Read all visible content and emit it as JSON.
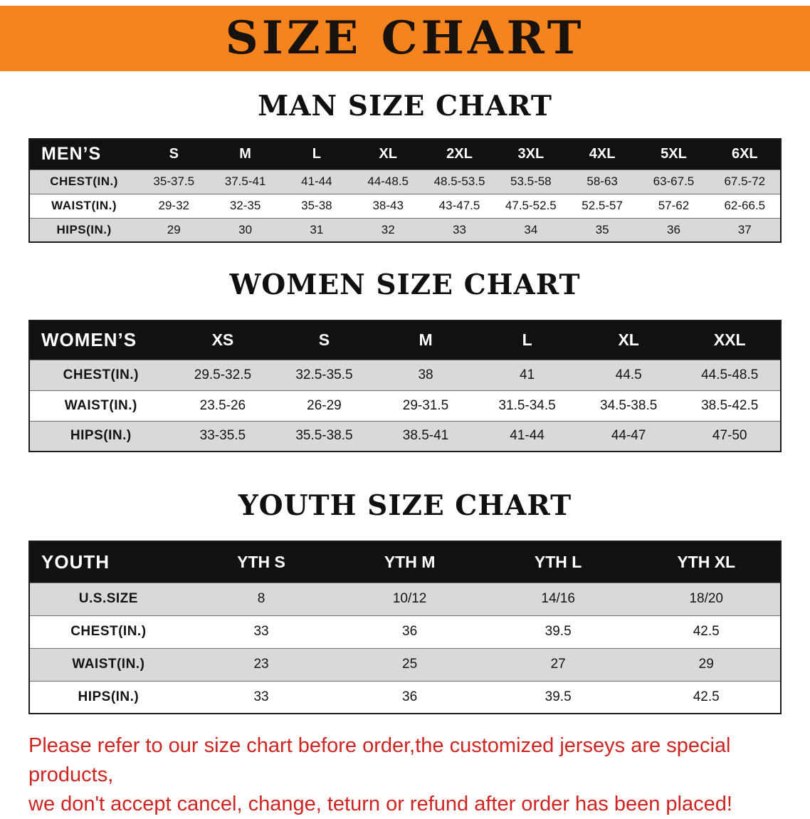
{
  "banner": {
    "title": "SIZE CHART"
  },
  "colors": {
    "banner_bg": "#F5841E",
    "header_row_bg": "#111111",
    "alt_row_bg": "#D9D9D9",
    "disclaimer_text": "#D02420"
  },
  "sections": [
    {
      "heading": "MAN SIZE CHART",
      "table": {
        "header": [
          "MEN’S",
          "S",
          "M",
          "L",
          "XL",
          "2XL",
          "3XL",
          "4XL",
          "5XL",
          "6XL"
        ],
        "rows": [
          [
            "CHEST(IN.)",
            "35-37.5",
            "37.5-41",
            "41-44",
            "44-48.5",
            "48.5-53.5",
            "53.5-58",
            "58-63",
            "63-67.5",
            "67.5-72"
          ],
          [
            "WAIST(IN.)",
            "29-32",
            "32-35",
            "35-38",
            "38-43",
            "43-47.5",
            "47.5-52.5",
            "52.5-57",
            "57-62",
            "62-66.5"
          ],
          [
            "HIPS(IN.)",
            "29",
            "30",
            "31",
            "32",
            "33",
            "34",
            "35",
            "36",
            "37"
          ]
        ]
      }
    },
    {
      "heading": "WOMEN SIZE CHART",
      "table": {
        "header": [
          "WOMEN’S",
          "XS",
          "S",
          "M",
          "L",
          "XL",
          "XXL"
        ],
        "rows": [
          [
            "CHEST(IN.)",
            "29.5-32.5",
            "32.5-35.5",
            "38",
            "41",
            "44.5",
            "44.5-48.5"
          ],
          [
            "WAIST(IN.)",
            "23.5-26",
            "26-29",
            "29-31.5",
            "31.5-34.5",
            "34.5-38.5",
            "38.5-42.5"
          ],
          [
            "HIPS(IN.)",
            "33-35.5",
            "35.5-38.5",
            "38.5-41",
            "41-44",
            "44-47",
            "47-50"
          ]
        ]
      }
    },
    {
      "heading": "YOUTH SIZE CHART",
      "table": {
        "header": [
          "YOUTH",
          "YTH S",
          "YTH M",
          "YTH L",
          "YTH XL"
        ],
        "rows": [
          [
            "U.S.SIZE",
            "8",
            "10/12",
            "14/16",
            "18/20"
          ],
          [
            "CHEST(IN.)",
            "33",
            "36",
            "39.5",
            "42.5"
          ],
          [
            "WAIST(IN.)",
            "23",
            "25",
            "27",
            "29"
          ],
          [
            "HIPS(IN.)",
            "33",
            "36",
            "39.5",
            "42.5"
          ]
        ]
      }
    }
  ],
  "disclaimer": {
    "lines": [
      "Please refer to our size chart before order,the customized jerseys are special products,",
      "we don't accept cancel, change, teturn or refund after order has been placed!"
    ]
  }
}
